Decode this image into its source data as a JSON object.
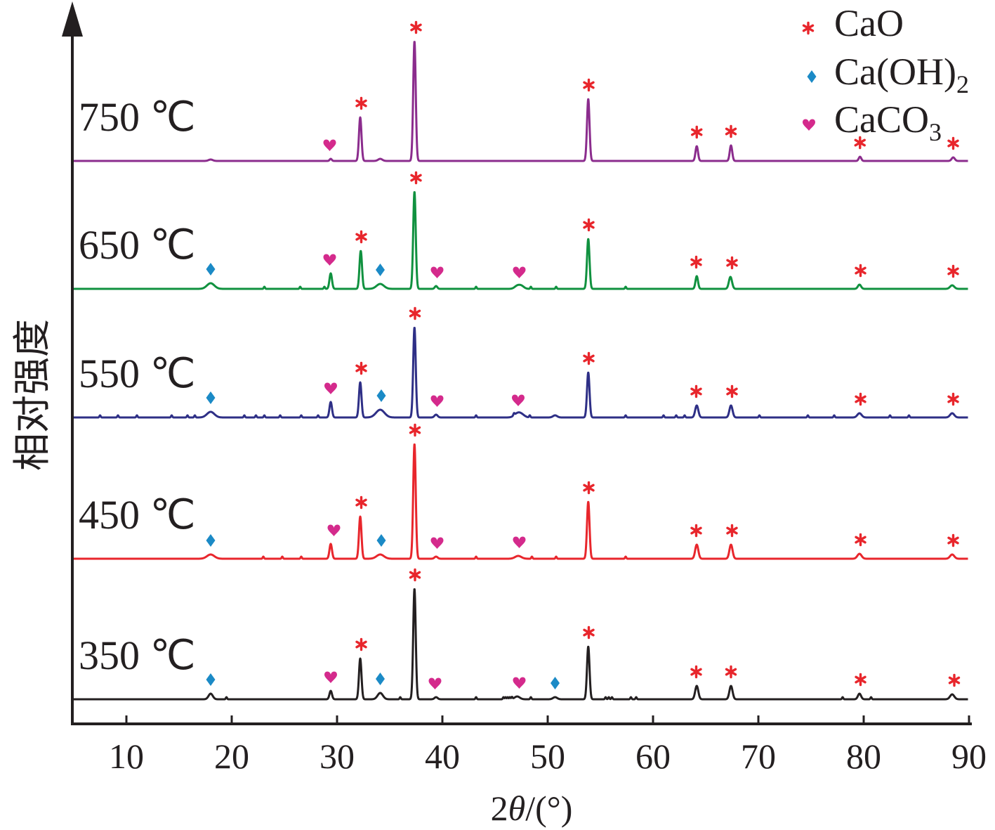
{
  "chart_data": {
    "type": "line",
    "xlabel": "2θ/(°)",
    "ylabel": "相对强度",
    "xlim": [
      5,
      90
    ],
    "xticks": [
      10,
      20,
      30,
      40,
      50,
      60,
      70,
      80,
      90
    ],
    "legend_position": "top-right",
    "legend": [
      {
        "label": "CaO",
        "marker": "asterisk",
        "color": "#e8262c"
      },
      {
        "label": "Ca(OH)",
        "sub": "2",
        "marker": "diamond",
        "color": "#1b8ac6"
      },
      {
        "label": "CaCO",
        "sub": "3",
        "marker": "heart",
        "color": "#d42a8c"
      }
    ],
    "series": [
      {
        "name": "750 ℃",
        "color": "#8b2c8d",
        "noise": [],
        "peaks": [
          {
            "x": 18.0,
            "h": 2,
            "w": 0.2
          },
          {
            "x": 29.4,
            "h": 3,
            "w": 0.1
          },
          {
            "x": 32.2,
            "h": 62,
            "w": 0.12
          },
          {
            "x": 34.1,
            "h": 3,
            "w": 0.2
          },
          {
            "x": 37.35,
            "h": 170,
            "w": 0.12
          },
          {
            "x": 53.85,
            "h": 88,
            "w": 0.12
          },
          {
            "x": 64.15,
            "h": 21,
            "w": 0.12
          },
          {
            "x": 67.4,
            "h": 22,
            "w": 0.12
          },
          {
            "x": 79.65,
            "h": 6,
            "w": 0.12
          },
          {
            "x": 88.5,
            "h": 5,
            "w": 0.15
          }
        ],
        "markers": [
          {
            "x": 29.3,
            "type": "heart"
          },
          {
            "x": 32.3,
            "type": "asterisk"
          },
          {
            "x": 37.5,
            "type": "asterisk"
          },
          {
            "x": 53.9,
            "type": "asterisk"
          },
          {
            "x": 64.15,
            "type": "asterisk"
          },
          {
            "x": 67.4,
            "type": "asterisk"
          },
          {
            "x": 79.65,
            "type": "asterisk"
          },
          {
            "x": 88.5,
            "type": "asterisk"
          }
        ]
      },
      {
        "name": "650 ℃",
        "color": "#10913f",
        "noise": [
          23.1,
          26.5,
          28.8,
          43.2,
          48.4,
          50.8,
          57.4
        ],
        "peaks": [
          {
            "x": 18.0,
            "h": 8,
            "w": 0.35
          },
          {
            "x": 29.4,
            "h": 22,
            "w": 0.12
          },
          {
            "x": 32.25,
            "h": 54,
            "w": 0.12
          },
          {
            "x": 34.1,
            "h": 7,
            "w": 0.35
          },
          {
            "x": 37.35,
            "h": 138,
            "w": 0.12
          },
          {
            "x": 39.4,
            "h": 4,
            "w": 0.12
          },
          {
            "x": 47.1,
            "h": 4,
            "w": 0.25
          },
          {
            "x": 47.5,
            "h": 4,
            "w": 0.25
          },
          {
            "x": 53.85,
            "h": 71,
            "w": 0.12
          },
          {
            "x": 64.15,
            "h": 18,
            "w": 0.12
          },
          {
            "x": 67.35,
            "h": 17,
            "w": 0.15
          },
          {
            "x": 79.6,
            "h": 6,
            "w": 0.15
          },
          {
            "x": 88.4,
            "h": 5,
            "w": 0.2
          }
        ],
        "markers": [
          {
            "x": 18.0,
            "type": "diamond"
          },
          {
            "x": 29.3,
            "type": "heart"
          },
          {
            "x": 32.3,
            "type": "asterisk"
          },
          {
            "x": 34.1,
            "type": "diamond"
          },
          {
            "x": 37.5,
            "type": "asterisk"
          },
          {
            "x": 39.5,
            "type": "heart"
          },
          {
            "x": 47.3,
            "type": "heart"
          },
          {
            "x": 53.9,
            "type": "asterisk"
          },
          {
            "x": 64.1,
            "type": "asterisk"
          },
          {
            "x": 67.5,
            "type": "asterisk"
          },
          {
            "x": 79.7,
            "type": "asterisk"
          },
          {
            "x": 88.5,
            "type": "asterisk"
          }
        ]
      },
      {
        "name": "550 ℃",
        "color": "#2e2f86",
        "noise": [
          7.5,
          9.2,
          11.0,
          14.3,
          15.8,
          16.5,
          21.2,
          22.3,
          23.1,
          24.6,
          26.6,
          28.2,
          43.2,
          46.8,
          48.3,
          57.4,
          61.0,
          62.2,
          63.0,
          70.1,
          74.7,
          77.2,
          82.5,
          84.3
        ],
        "peaks": [
          {
            "x": 18.0,
            "h": 8,
            "w": 0.35
          },
          {
            "x": 29.4,
            "h": 22,
            "w": 0.12
          },
          {
            "x": 32.2,
            "h": 50,
            "w": 0.12
          },
          {
            "x": 34.1,
            "h": 11,
            "w": 0.4
          },
          {
            "x": 37.35,
            "h": 128,
            "w": 0.12
          },
          {
            "x": 39.4,
            "h": 4,
            "w": 0.15
          },
          {
            "x": 47.1,
            "h": 5,
            "w": 0.3
          },
          {
            "x": 47.5,
            "h": 4,
            "w": 0.3
          },
          {
            "x": 50.7,
            "h": 3,
            "w": 0.2
          },
          {
            "x": 53.85,
            "h": 64,
            "w": 0.12
          },
          {
            "x": 64.15,
            "h": 17,
            "w": 0.15
          },
          {
            "x": 67.4,
            "h": 17,
            "w": 0.15
          },
          {
            "x": 79.6,
            "h": 6,
            "w": 0.2
          },
          {
            "x": 88.4,
            "h": 6,
            "w": 0.2
          }
        ],
        "markers": [
          {
            "x": 18.0,
            "type": "diamond"
          },
          {
            "x": 29.4,
            "type": "heart"
          },
          {
            "x": 32.3,
            "type": "asterisk"
          },
          {
            "x": 34.2,
            "type": "diamond"
          },
          {
            "x": 37.4,
            "type": "asterisk"
          },
          {
            "x": 39.5,
            "type": "heart"
          },
          {
            "x": 47.2,
            "type": "heart"
          },
          {
            "x": 53.9,
            "type": "asterisk"
          },
          {
            "x": 64.1,
            "type": "asterisk"
          },
          {
            "x": 67.5,
            "type": "asterisk"
          },
          {
            "x": 79.7,
            "type": "asterisk"
          },
          {
            "x": 88.5,
            "type": "asterisk"
          }
        ]
      },
      {
        "name": "450 ℃",
        "color": "#e8262c",
        "noise": [
          23.0,
          24.8,
          26.6,
          43.2,
          48.5,
          50.8,
          57.4
        ],
        "peaks": [
          {
            "x": 18.0,
            "h": 6,
            "w": 0.35
          },
          {
            "x": 29.4,
            "h": 21,
            "w": 0.12
          },
          {
            "x": 32.2,
            "h": 60,
            "w": 0.12
          },
          {
            "x": 34.1,
            "h": 6,
            "w": 0.35
          },
          {
            "x": 37.35,
            "h": 163,
            "w": 0.12
          },
          {
            "x": 39.4,
            "h": 3,
            "w": 0.15
          },
          {
            "x": 47.2,
            "h": 4,
            "w": 0.3
          },
          {
            "x": 53.85,
            "h": 81,
            "w": 0.12
          },
          {
            "x": 64.15,
            "h": 20,
            "w": 0.15
          },
          {
            "x": 67.4,
            "h": 20,
            "w": 0.15
          },
          {
            "x": 79.6,
            "h": 7,
            "w": 0.2
          },
          {
            "x": 88.4,
            "h": 6,
            "w": 0.2
          }
        ],
        "markers": [
          {
            "x": 18.0,
            "type": "diamond"
          },
          {
            "x": 29.7,
            "type": "heart"
          },
          {
            "x": 32.3,
            "type": "asterisk"
          },
          {
            "x": 34.2,
            "type": "diamond"
          },
          {
            "x": 37.4,
            "type": "asterisk"
          },
          {
            "x": 39.5,
            "type": "heart"
          },
          {
            "x": 47.3,
            "type": "heart"
          },
          {
            "x": 53.9,
            "type": "asterisk"
          },
          {
            "x": 64.1,
            "type": "asterisk"
          },
          {
            "x": 67.5,
            "type": "asterisk"
          },
          {
            "x": 79.7,
            "type": "asterisk"
          },
          {
            "x": 88.5,
            "type": "asterisk"
          }
        ]
      },
      {
        "name": "350 ℃",
        "color": "#231f20",
        "noise": [
          19.5,
          36.0,
          43.2,
          45.8,
          46.0,
          46.2,
          46.4,
          46.6,
          48.4,
          55.5,
          55.8,
          56.1,
          57.9,
          58.4,
          78.0,
          80.7
        ],
        "peaks": [
          {
            "x": 18.0,
            "h": 8,
            "w": 0.2
          },
          {
            "x": 29.4,
            "h": 12,
            "w": 0.12
          },
          {
            "x": 32.2,
            "h": 58,
            "w": 0.12
          },
          {
            "x": 34.1,
            "h": 9,
            "w": 0.25
          },
          {
            "x": 37.35,
            "h": 157,
            "w": 0.12
          },
          {
            "x": 39.4,
            "h": 3,
            "w": 0.15
          },
          {
            "x": 47.1,
            "h": 4,
            "w": 0.25
          },
          {
            "x": 50.7,
            "h": 3,
            "w": 0.2
          },
          {
            "x": 53.85,
            "h": 75,
            "w": 0.12
          },
          {
            "x": 64.15,
            "h": 19,
            "w": 0.15
          },
          {
            "x": 67.4,
            "h": 19,
            "w": 0.15
          },
          {
            "x": 79.6,
            "h": 8,
            "w": 0.15
          },
          {
            "x": 88.4,
            "h": 7,
            "w": 0.2
          }
        ],
        "markers": [
          {
            "x": 18.0,
            "type": "diamond"
          },
          {
            "x": 29.4,
            "type": "heart"
          },
          {
            "x": 32.3,
            "type": "asterisk"
          },
          {
            "x": 34.1,
            "type": "diamond"
          },
          {
            "x": 37.4,
            "type": "asterisk"
          },
          {
            "x": 39.3,
            "type": "heart"
          },
          {
            "x": 47.3,
            "type": "heart"
          },
          {
            "x": 50.7,
            "type": "diamond"
          },
          {
            "x": 53.9,
            "type": "asterisk"
          },
          {
            "x": 64.1,
            "type": "asterisk"
          },
          {
            "x": 67.4,
            "type": "asterisk"
          },
          {
            "x": 79.7,
            "type": "asterisk"
          },
          {
            "x": 88.6,
            "type": "asterisk"
          }
        ]
      }
    ]
  }
}
